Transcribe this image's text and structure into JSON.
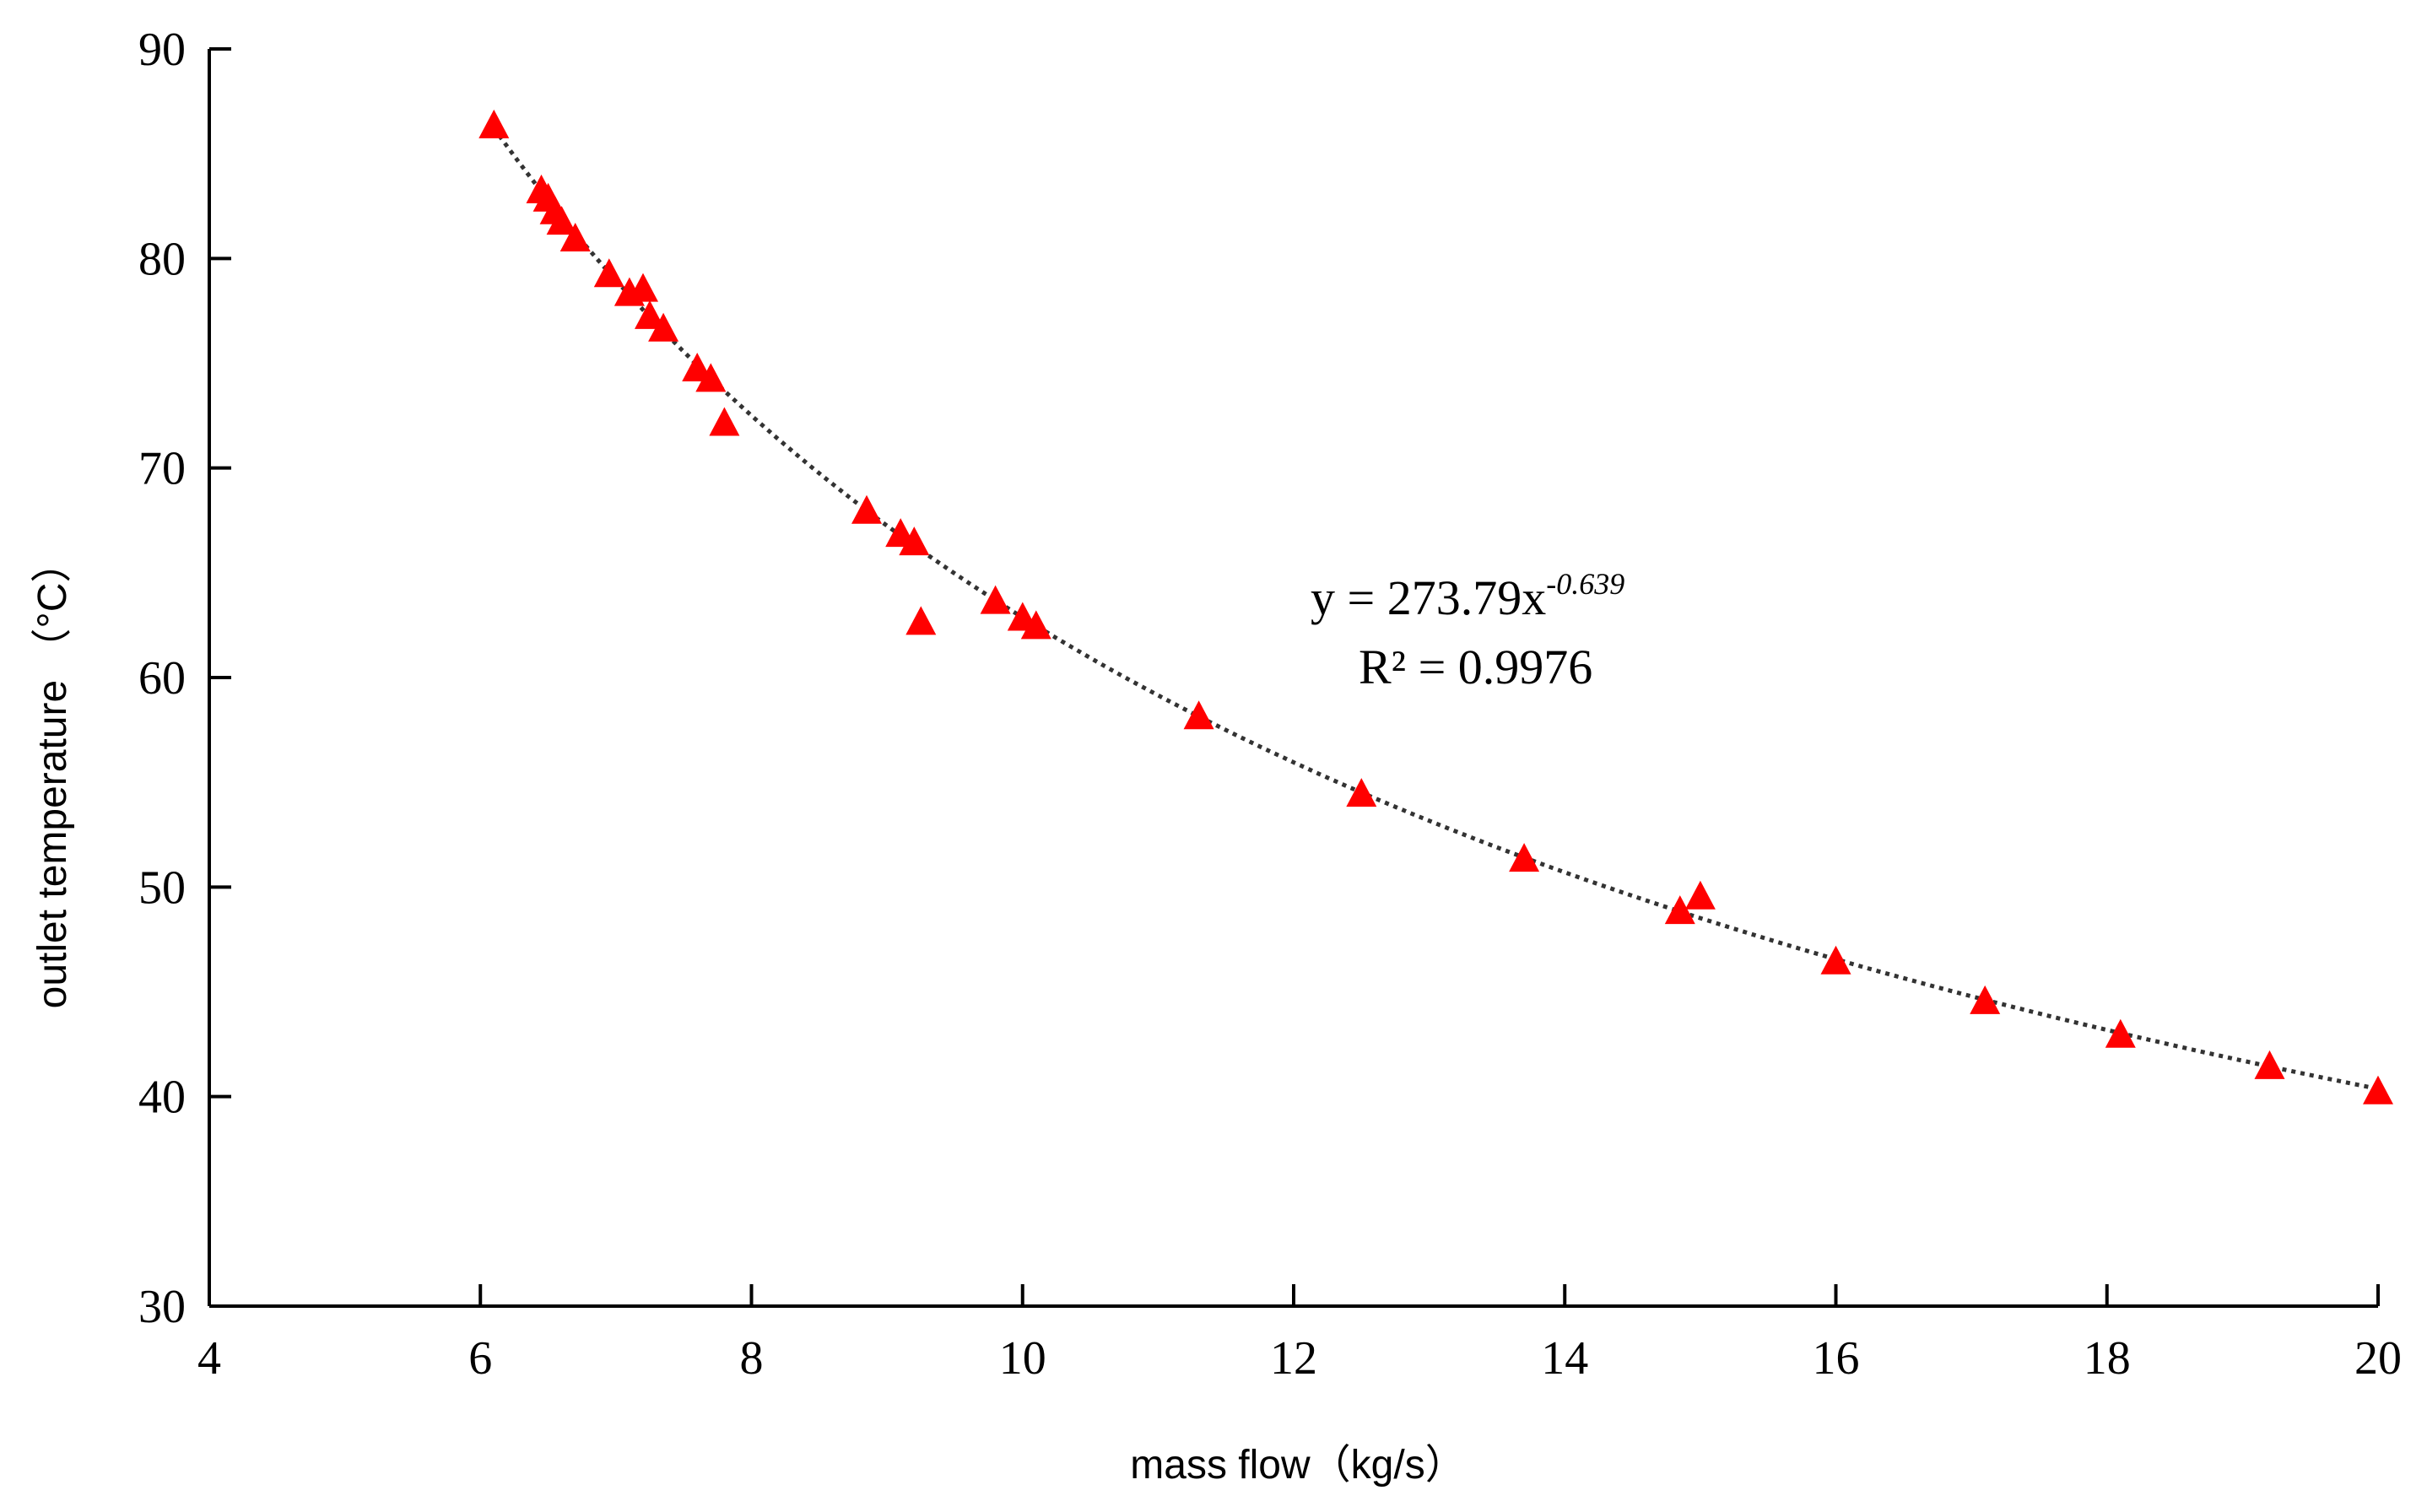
{
  "chart_data": {
    "type": "scatter",
    "xlabel": "mass flow（kg/s）",
    "ylabel": "outlet temperature （°C）",
    "xlim": [
      4,
      20
    ],
    "ylim": [
      30,
      90
    ],
    "x_ticks": [
      "4",
      "6",
      "8",
      "10",
      "12",
      "14",
      "16",
      "18",
      "20"
    ],
    "y_ticks": [
      "30",
      "40",
      "50",
      "60",
      "70",
      "80",
      "90"
    ],
    "grid": false,
    "legend": "none",
    "marker": "triangle",
    "marker_color": "#ff0000",
    "trendline": {
      "type": "power",
      "a": 273.79,
      "b": -0.639,
      "style": "dotted",
      "color": "#333333",
      "equation_prefix": "y = 273.79x",
      "equation_exponent": "-0.639",
      "r_squared_label": "R² = 0.9976"
    },
    "series": [
      {
        "x": [
          6.1,
          6.45,
          6.5,
          6.55,
          6.6,
          6.7,
          6.95,
          7.1,
          7.2,
          7.25,
          7.35,
          7.6,
          7.7,
          7.8,
          8.85,
          9.1,
          9.2,
          9.25,
          9.8,
          10.0,
          10.1,
          11.3,
          12.5,
          13.7,
          14.85,
          15.0,
          16.0,
          17.1,
          18.1,
          19.2,
          20.0
        ],
        "y": [
          86.3,
          83.2,
          82.8,
          82.2,
          81.7,
          80.9,
          79.2,
          78.3,
          78.5,
          77.2,
          76.6,
          74.7,
          74.2,
          72.1,
          67.9,
          66.8,
          66.4,
          62.6,
          63.6,
          62.8,
          62.4,
          58.1,
          54.4,
          51.3,
          48.8,
          49.5,
          46.4,
          44.5,
          42.9,
          41.4,
          40.2
        ]
      }
    ]
  }
}
